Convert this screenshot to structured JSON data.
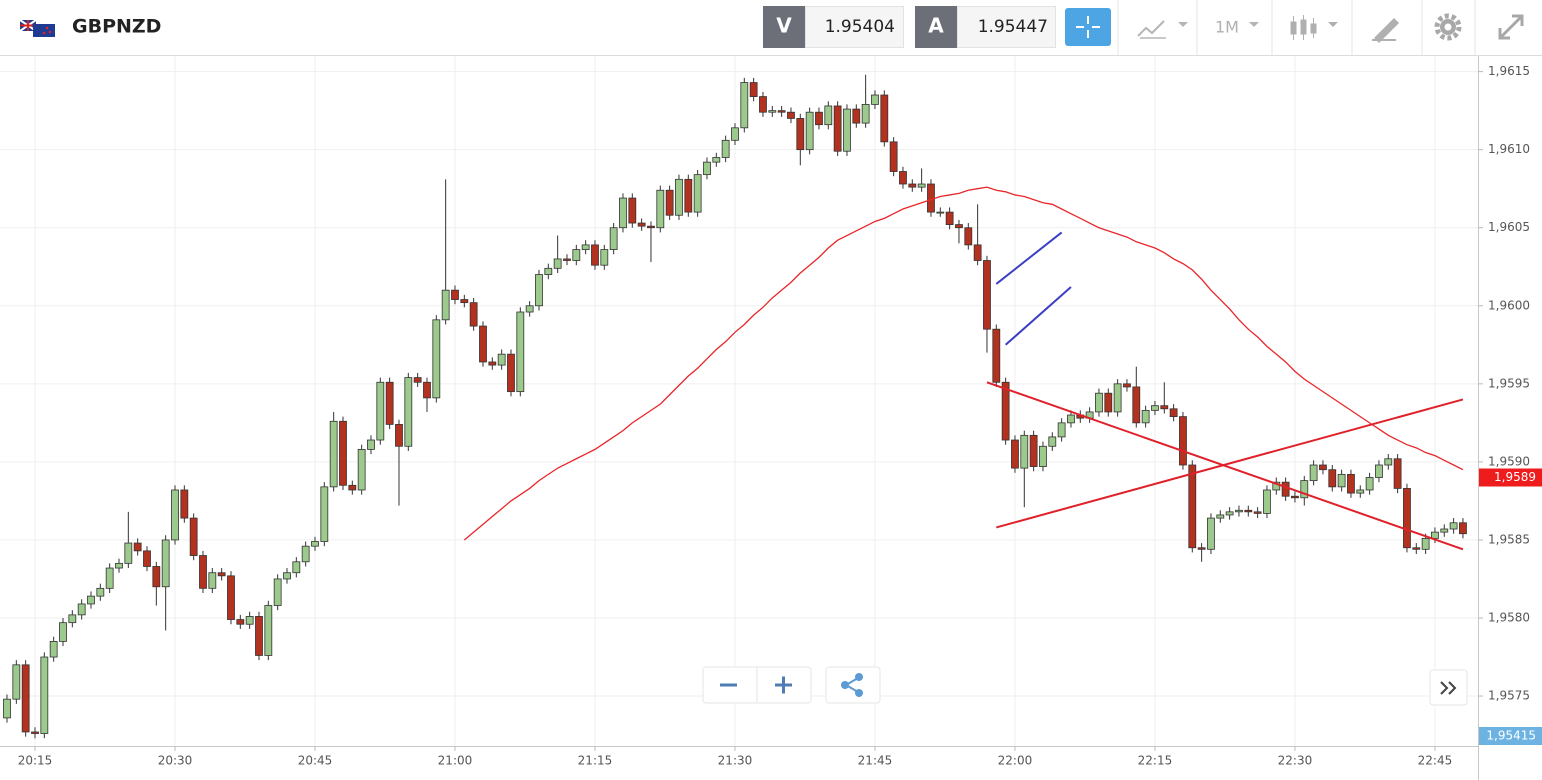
{
  "header": {
    "symbol": "GBPNZD",
    "bid_label": "V",
    "bid": "1.95404",
    "ask_label": "A",
    "ask": "1.95447",
    "timeframe": "1M"
  },
  "chart_data": {
    "type": "candlestick",
    "categories": [
      "20:12",
      "20:13",
      "20:14",
      "20:15",
      "20:16",
      "20:17",
      "20:18",
      "20:19",
      "20:20",
      "20:21",
      "20:22",
      "20:23",
      "20:24",
      "20:25",
      "20:26",
      "20:27",
      "20:28",
      "20:29",
      "20:30",
      "20:31",
      "20:32",
      "20:33",
      "20:34",
      "20:35",
      "20:36",
      "20:37",
      "20:38",
      "20:39",
      "20:40",
      "20:41",
      "20:42",
      "20:43",
      "20:44",
      "20:45",
      "20:46",
      "20:47",
      "20:48",
      "20:49",
      "20:50",
      "20:51",
      "20:52",
      "20:53",
      "20:54",
      "20:55",
      "20:56",
      "20:57",
      "20:58",
      "20:59",
      "21:00",
      "21:01",
      "21:02",
      "21:03",
      "21:04",
      "21:05",
      "21:06",
      "21:07",
      "21:08",
      "21:09",
      "21:10",
      "21:11",
      "21:12",
      "21:13",
      "21:14",
      "21:15",
      "21:16",
      "21:17",
      "21:18",
      "21:19",
      "21:20",
      "21:21",
      "21:22",
      "21:23",
      "21:24",
      "21:25",
      "21:26",
      "21:27",
      "21:28",
      "21:29",
      "21:30",
      "21:31",
      "21:32",
      "21:33",
      "21:34",
      "21:35",
      "21:36",
      "21:37",
      "21:38",
      "21:39",
      "21:40",
      "21:41",
      "21:42",
      "21:43",
      "21:44",
      "21:45",
      "21:46",
      "21:47",
      "21:48",
      "21:49",
      "21:50",
      "21:51",
      "21:52",
      "21:53",
      "21:54",
      "21:55",
      "21:56",
      "21:57",
      "21:58",
      "21:59",
      "22:00",
      "22:01",
      "22:02",
      "22:03",
      "22:04",
      "22:05",
      "22:06",
      "22:07",
      "22:08",
      "22:09",
      "22:10",
      "22:11",
      "22:12",
      "22:13",
      "22:14",
      "22:15",
      "22:16",
      "22:17",
      "22:18",
      "22:19",
      "22:20",
      "22:21",
      "22:22",
      "22:23",
      "22:24",
      "22:25",
      "22:26",
      "22:27",
      "22:28",
      "22:29",
      "22:30",
      "22:31",
      "22:32",
      "22:33",
      "22:34",
      "22:35",
      "22:36",
      "22:37",
      "22:38",
      "22:39",
      "22:40",
      "22:41",
      "22:42",
      "22:43",
      "22:44",
      "22:45",
      "22:46",
      "22:47",
      "22:48"
    ],
    "open": [
      1.95736,
      1.95748,
      1.9577,
      1.95727,
      1.95726,
      1.95775,
      1.95785,
      1.95797,
      1.95802,
      1.95809,
      1.95814,
      1.95819,
      1.95832,
      1.95835,
      1.95848,
      1.95843,
      1.95833,
      1.9582,
      1.9585,
      1.95882,
      1.95864,
      1.9584,
      1.95819,
      1.95829,
      1.95827,
      1.95799,
      1.95796,
      1.95801,
      1.95776,
      1.95808,
      1.95825,
      1.95829,
      1.95836,
      1.95846,
      1.95849,
      1.95884,
      1.95926,
      1.95885,
      1.95882,
      1.95908,
      1.95914,
      1.95951,
      1.95924,
      1.9591,
      1.95954,
      1.95951,
      1.95941,
      1.95991,
      1.9601,
      1.96004,
      1.96002,
      1.95987,
      1.95964,
      1.95962,
      1.95969,
      1.95945,
      1.95996,
      1.96,
      1.9602,
      1.96024,
      1.9603,
      1.96029,
      1.96036,
      1.96039,
      1.96026,
      1.96036,
      1.9605,
      1.96069,
      1.96053,
      1.96051,
      1.9605,
      1.96074,
      1.96058,
      1.96081,
      1.9606,
      1.96084,
      1.96092,
      1.96095,
      1.96106,
      1.96114,
      1.96143,
      1.96134,
      1.96124,
      1.96125,
      1.96124,
      1.9612,
      1.961,
      1.96124,
      1.96116,
      1.96128,
      1.96099,
      1.96126,
      1.96117,
      1.96129,
      1.96135,
      1.96105,
      1.96086,
      1.96078,
      1.96076,
      1.96078,
      1.9606,
      1.9606,
      1.96052,
      1.9605,
      1.96039,
      1.96029,
      1.95985,
      1.95951,
      1.95914,
      1.95896,
      1.95917,
      1.95897,
      1.9591,
      1.95916,
      1.95925,
      1.9593,
      1.95928,
      1.95932,
      1.95944,
      1.95932,
      1.9595,
      1.95948,
      1.95925,
      1.95933,
      1.95936,
      1.95934,
      1.95929,
      1.95898,
      1.95845,
      1.95844,
      1.95864,
      1.95866,
      1.95868,
      1.95869,
      1.95868,
      1.95867,
      1.95882,
      1.95887,
      1.95878,
      1.95877,
      1.95888,
      1.95898,
      1.95895,
      1.95884,
      1.95892,
      1.9588,
      1.95882,
      1.9589,
      1.95898,
      1.95902,
      1.95883,
      1.95845,
      1.95844,
      1.95851,
      1.95855,
      1.95857,
      1.95861
    ],
    "high": [
      1.95751,
      1.95773,
      1.95773,
      1.9573,
      1.95778,
      1.95788,
      1.958,
      1.95805,
      1.95812,
      1.95817,
      1.95822,
      1.95835,
      1.95838,
      1.95868,
      1.95851,
      1.95846,
      1.95836,
      1.95853,
      1.95885,
      1.95885,
      1.95867,
      1.95843,
      1.95832,
      1.95832,
      1.9583,
      1.95802,
      1.95804,
      1.95804,
      1.95811,
      1.95828,
      1.95832,
      1.95839,
      1.95849,
      1.95852,
      1.95887,
      1.95932,
      1.95929,
      1.95888,
      1.95911,
      1.95917,
      1.95954,
      1.95954,
      1.95927,
      1.95957,
      1.95957,
      1.95954,
      1.95994,
      1.96081,
      1.96013,
      1.96007,
      1.96005,
      1.9599,
      1.95967,
      1.95972,
      1.95972,
      1.95999,
      1.96003,
      1.96023,
      1.96027,
      1.96045,
      1.96033,
      1.96039,
      1.96042,
      1.96042,
      1.96039,
      1.96053,
      1.96072,
      1.96072,
      1.96056,
      1.96054,
      1.96077,
      1.96077,
      1.96084,
      1.96084,
      1.96087,
      1.96095,
      1.96098,
      1.96109,
      1.96117,
      1.96146,
      1.96146,
      1.96137,
      1.96128,
      1.96128,
      1.96127,
      1.96123,
      1.96127,
      1.96127,
      1.96131,
      1.96131,
      1.96129,
      1.96129,
      1.96148,
      1.96138,
      1.96138,
      1.96108,
      1.96089,
      1.96081,
      1.96088,
      1.96081,
      1.96063,
      1.96063,
      1.96055,
      1.96053,
      1.96065,
      1.96032,
      1.95988,
      1.95954,
      1.95917,
      1.9592,
      1.9592,
      1.95913,
      1.95919,
      1.95928,
      1.95933,
      1.95933,
      1.95935,
      1.95947,
      1.95947,
      1.95953,
      1.95953,
      1.95961,
      1.95936,
      1.95939,
      1.95951,
      1.95937,
      1.95932,
      1.95901,
      1.95848,
      1.95867,
      1.95869,
      1.95871,
      1.95872,
      1.95872,
      1.95871,
      1.95885,
      1.9589,
      1.9589,
      1.95881,
      1.95891,
      1.95901,
      1.95901,
      1.95898,
      1.95895,
      1.95895,
      1.95885,
      1.95893,
      1.95901,
      1.95905,
      1.95905,
      1.95886,
      1.95848,
      1.95854,
      1.95858,
      1.9586,
      1.95864,
      1.95864
    ],
    "low": [
      1.95733,
      1.95745,
      1.95724,
      1.95723,
      1.95723,
      1.95772,
      1.95782,
      1.95794,
      1.95799,
      1.95806,
      1.95811,
      1.95816,
      1.95829,
      1.95832,
      1.9584,
      1.9583,
      1.95808,
      1.95792,
      1.95847,
      1.95861,
      1.95837,
      1.95816,
      1.95816,
      1.95824,
      1.95796,
      1.95793,
      1.95793,
      1.95773,
      1.95773,
      1.95805,
      1.95822,
      1.95826,
      1.95833,
      1.95843,
      1.95846,
      1.95881,
      1.95882,
      1.95879,
      1.95879,
      1.95905,
      1.95911,
      1.95921,
      1.95872,
      1.95907,
      1.95948,
      1.95932,
      1.95938,
      1.95988,
      1.96001,
      1.95999,
      1.95984,
      1.95961,
      1.95959,
      1.95959,
      1.95942,
      1.95942,
      1.95993,
      1.95997,
      1.96017,
      1.96021,
      1.96026,
      1.96026,
      1.96033,
      1.96023,
      1.96023,
      1.96033,
      1.96047,
      1.9605,
      1.96048,
      1.96028,
      1.96047,
      1.96055,
      1.96055,
      1.96057,
      1.96057,
      1.96081,
      1.96089,
      1.96092,
      1.96103,
      1.96111,
      1.96131,
      1.96121,
      1.96121,
      1.96121,
      1.96117,
      1.9609,
      1.96097,
      1.96113,
      1.96113,
      1.96096,
      1.96096,
      1.96114,
      1.96114,
      1.96126,
      1.96102,
      1.96083,
      1.96075,
      1.96073,
      1.96073,
      1.96057,
      1.96057,
      1.96049,
      1.9604,
      1.96036,
      1.96026,
      1.9597,
      1.95948,
      1.95911,
      1.95893,
      1.95871,
      1.95894,
      1.95894,
      1.95907,
      1.95913,
      1.95922,
      1.95925,
      1.95925,
      1.95929,
      1.95929,
      1.95929,
      1.95945,
      1.95922,
      1.95922,
      1.9593,
      1.95931,
      1.95926,
      1.95895,
      1.95842,
      1.95836,
      1.95841,
      1.95861,
      1.95863,
      1.95865,
      1.95865,
      1.95864,
      1.95864,
      1.95879,
      1.95875,
      1.95874,
      1.95872,
      1.95885,
      1.95892,
      1.95881,
      1.95881,
      1.95877,
      1.95877,
      1.95879,
      1.95887,
      1.95895,
      1.9588,
      1.95842,
      1.95841,
      1.95841,
      1.95848,
      1.95852,
      1.95854,
      1.95851
    ],
    "close": [
      1.95748,
      1.9577,
      1.95727,
      1.95726,
      1.95775,
      1.95785,
      1.95797,
      1.95802,
      1.95809,
      1.95814,
      1.95819,
      1.95832,
      1.95835,
      1.95848,
      1.95843,
      1.95833,
      1.9582,
      1.9585,
      1.95882,
      1.95864,
      1.9584,
      1.95819,
      1.95829,
      1.95827,
      1.95799,
      1.95796,
      1.95801,
      1.95776,
      1.95808,
      1.95825,
      1.95829,
      1.95836,
      1.95846,
      1.95849,
      1.95884,
      1.95926,
      1.95885,
      1.95882,
      1.95908,
      1.95914,
      1.95951,
      1.95924,
      1.9591,
      1.95954,
      1.95951,
      1.95941,
      1.95991,
      1.9601,
      1.96004,
      1.96002,
      1.95987,
      1.95964,
      1.95962,
      1.95969,
      1.95945,
      1.95996,
      1.96,
      1.9602,
      1.96024,
      1.9603,
      1.96029,
      1.96036,
      1.96039,
      1.96026,
      1.96036,
      1.9605,
      1.96069,
      1.96053,
      1.96051,
      1.9605,
      1.96074,
      1.96058,
      1.96081,
      1.9606,
      1.96084,
      1.96092,
      1.96095,
      1.96106,
      1.96114,
      1.96143,
      1.96134,
      1.96124,
      1.96125,
      1.96124,
      1.9612,
      1.961,
      1.96124,
      1.96116,
      1.96128,
      1.96099,
      1.96126,
      1.96117,
      1.96129,
      1.96135,
      1.96105,
      1.96086,
      1.96078,
      1.96076,
      1.96078,
      1.9606,
      1.9606,
      1.96052,
      1.9605,
      1.96039,
      1.96029,
      1.95985,
      1.95951,
      1.95914,
      1.95896,
      1.95917,
      1.95897,
      1.9591,
      1.95916,
      1.95925,
      1.9593,
      1.95928,
      1.95932,
      1.95944,
      1.95932,
      1.9595,
      1.95948,
      1.95925,
      1.95933,
      1.95936,
      1.95934,
      1.95929,
      1.95898,
      1.95845,
      1.95844,
      1.95864,
      1.95866,
      1.95868,
      1.95869,
      1.95868,
      1.95867,
      1.95882,
      1.95887,
      1.95878,
      1.95877,
      1.95888,
      1.95898,
      1.95895,
      1.95884,
      1.95892,
      1.9588,
      1.95882,
      1.9589,
      1.95898,
      1.95902,
      1.95883,
      1.95845,
      1.95844,
      1.95851,
      1.95855,
      1.95857,
      1.95861,
      1.95854
    ],
    "up_color": "#9cc98c",
    "down_color": "#b3321f",
    "ma": {
      "color": "#e8262a",
      "values": [
        null,
        null,
        null,
        null,
        null,
        null,
        null,
        null,
        null,
        null,
        null,
        null,
        null,
        null,
        null,
        null,
        null,
        null,
        null,
        null,
        null,
        null,
        null,
        null,
        null,
        null,
        null,
        null,
        null,
        null,
        null,
        null,
        null,
        null,
        null,
        null,
        null,
        null,
        null,
        null,
        null,
        null,
        null,
        null,
        null,
        null,
        null,
        null,
        null,
        1.9585,
        1.95855,
        1.9586,
        1.95865,
        1.9587,
        1.95875,
        1.95879,
        1.95883,
        1.95888,
        1.95892,
        1.95896,
        1.95899,
        1.95902,
        1.95905,
        1.95908,
        1.95912,
        1.95916,
        1.9592,
        1.95925,
        1.95929,
        1.95933,
        1.95937,
        1.95943,
        1.95949,
        1.95955,
        1.9596,
        1.95966,
        1.95972,
        1.95977,
        1.95983,
        1.95988,
        1.95994,
        1.95999,
        1.96005,
        1.9601,
        1.96015,
        1.96021,
        1.96026,
        1.96031,
        1.96037,
        1.96042,
        1.96045,
        1.96048,
        1.96051,
        1.96054,
        1.96056,
        1.96059,
        1.96062,
        1.96064,
        1.96066,
        1.96068,
        1.9607,
        1.96071,
        1.96072,
        1.96074,
        1.96075,
        1.96076,
        1.96074,
        1.96073,
        1.96071,
        1.9607,
        1.96068,
        1.96066,
        1.96065,
        1.96062,
        1.96059,
        1.96056,
        1.96053,
        1.9605,
        1.96048,
        1.96046,
        1.96044,
        1.96041,
        1.96039,
        1.96037,
        1.96034,
        1.9603,
        1.96027,
        1.96023,
        1.96017,
        1.9601,
        1.96004,
        1.95998,
        1.95991,
        1.95985,
        1.9598,
        1.95974,
        1.95969,
        1.95964,
        1.95958,
        1.95953,
        1.95949,
        1.95945,
        1.95941,
        1.95937,
        1.95933,
        1.95929,
        1.95925,
        1.95921,
        1.95917,
        1.95914,
        1.95911,
        1.95909,
        1.95906,
        1.95904,
        1.95901,
        1.95898,
        1.95895
      ]
    },
    "trendlines": [
      {
        "x": [
          "21:58",
          "22:05"
        ],
        "y": [
          1.96014,
          1.96047
        ],
        "color": "#3b3fc4"
      },
      {
        "x": [
          "21:59",
          "22:06"
        ],
        "y": [
          1.95975,
          1.96012
        ],
        "color": "#3b3fc4"
      },
      {
        "x": [
          "21:57",
          "22:48"
        ],
        "y": [
          1.95951,
          1.95844
        ],
        "color": "#e0212a"
      },
      {
        "x": [
          "21:58",
          "22:48"
        ],
        "y": [
          1.95858,
          1.9594
        ],
        "color": "#e0212a"
      }
    ],
    "ylim": [
      1.95718,
      1.9616
    ],
    "yticks": [
      {
        "value": 1.9575,
        "label": "1,9575"
      },
      {
        "value": 1.958,
        "label": "1,9580"
      },
      {
        "value": 1.9585,
        "label": "1,9585"
      },
      {
        "value": 1.959,
        "label": "1,9590"
      },
      {
        "value": 1.9595,
        "label": "1,9595"
      },
      {
        "value": 1.96,
        "label": "1,9600"
      },
      {
        "value": 1.9605,
        "label": "1,9605"
      },
      {
        "value": 1.961,
        "label": "1,9610"
      },
      {
        "value": 1.9615,
        "label": "1,9615"
      }
    ],
    "xticks": [
      "20:15",
      "20:30",
      "20:45",
      "21:00",
      "21:15",
      "21:30",
      "21:45",
      "22:00",
      "22:15",
      "22:30",
      "22:45"
    ],
    "grid": true,
    "last_price": {
      "value": 1.9589,
      "label": "1,9589",
      "color": "#ee1c1c"
    },
    "axis_price_label": "1,95415"
  }
}
